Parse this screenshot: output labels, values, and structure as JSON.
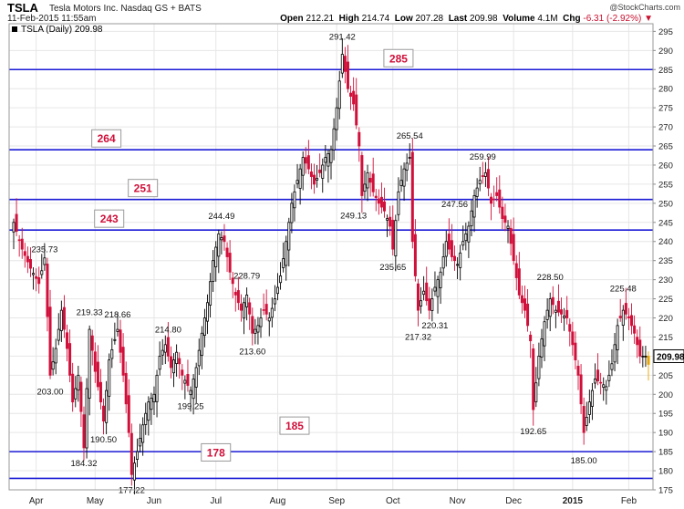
{
  "header": {
    "symbol": "TSLA",
    "company": "Tesla Motors Inc.  Nasdaq GS + BATS",
    "datetime": "11-Feb-2015 11:55am",
    "copyright": "@StockCharts.com",
    "open_label": "Open",
    "open_value": "212.21",
    "high_label": "High",
    "high_value": "214.74",
    "low_label": "Low",
    "low_value": "207.28",
    "last_label": "Last",
    "last_value": "209.98",
    "volume_label": "Volume",
    "volume_value": "4.1M",
    "chg_label": "Chg",
    "chg_value": "-6.31 (-2.92%)",
    "chg_arrow": "▼"
  },
  "chart_data": {
    "type": "candlestick",
    "legend": "TSLA (Daily) 209.98",
    "last_price_label": "209.98",
    "ylim": [
      175,
      297
    ],
    "y_ticks": [
      175,
      180,
      185,
      190,
      195,
      200,
      205,
      210,
      215,
      220,
      225,
      230,
      235,
      240,
      245,
      250,
      255,
      260,
      265,
      270,
      275,
      280,
      285,
      290,
      295
    ],
    "x_labels": [
      {
        "label": "Apr",
        "bold": false,
        "session": 8
      },
      {
        "label": "May",
        "bold": false,
        "session": 29
      },
      {
        "label": "Jun",
        "bold": false,
        "session": 50
      },
      {
        "label": "Jul",
        "bold": false,
        "session": 72
      },
      {
        "label": "Aug",
        "bold": false,
        "session": 94
      },
      {
        "label": "Sep",
        "bold": false,
        "session": 115
      },
      {
        "label": "Oct",
        "bold": false,
        "session": 135
      },
      {
        "label": "Nov",
        "bold": false,
        "session": 158
      },
      {
        "label": "Dec",
        "bold": false,
        "session": 178
      },
      {
        "label": "2015",
        "bold": true,
        "session": 199
      },
      {
        "label": "Feb",
        "bold": false,
        "session": 219
      }
    ],
    "sessions": 227,
    "horizontal_lines": [
      {
        "value": 285,
        "label": "285",
        "label_session": 137
      },
      {
        "value": 264,
        "label": "264",
        "label_session": 33
      },
      {
        "value": 251,
        "label": "251",
        "label_session": 46
      },
      {
        "value": 243,
        "label": "243",
        "label_session": 34
      },
      {
        "value": 185,
        "label": "185",
        "label_session": 100
      },
      {
        "value": 178,
        "label": "178",
        "label_session": 72
      }
    ],
    "annotations": [
      {
        "text": "235.73",
        "session": 11,
        "value": 235.73,
        "pos": "above"
      },
      {
        "text": "203.00",
        "session": 13,
        "value": 203.0,
        "pos": "below"
      },
      {
        "text": "219.33",
        "session": 27,
        "value": 219.33,
        "pos": "above"
      },
      {
        "text": "218.66",
        "session": 37,
        "value": 218.66,
        "pos": "above"
      },
      {
        "text": "190.50",
        "session": 32,
        "value": 190.5,
        "pos": "below"
      },
      {
        "text": "184.32",
        "session": 25,
        "value": 184.32,
        "pos": "below"
      },
      {
        "text": "177.22",
        "session": 42,
        "value": 177.22,
        "pos": "below"
      },
      {
        "text": "214.80",
        "session": 55,
        "value": 214.8,
        "pos": "above"
      },
      {
        "text": "199.25",
        "session": 63,
        "value": 199.25,
        "pos": "below"
      },
      {
        "text": "244.49",
        "session": 74,
        "value": 244.49,
        "pos": "above"
      },
      {
        "text": "228.79",
        "session": 83,
        "value": 228.79,
        "pos": "above"
      },
      {
        "text": "213.60",
        "session": 85,
        "value": 213.6,
        "pos": "below"
      },
      {
        "text": "291.42",
        "session": 117,
        "value": 291.42,
        "pos": "above"
      },
      {
        "text": "249.13",
        "session": 121,
        "value": 249.13,
        "pos": "below"
      },
      {
        "text": "265.54",
        "session": 141,
        "value": 265.54,
        "pos": "above"
      },
      {
        "text": "235.65",
        "session": 135,
        "value": 235.65,
        "pos": "below"
      },
      {
        "text": "217.32",
        "session": 144,
        "value": 217.32,
        "pos": "below"
      },
      {
        "text": "220.31",
        "session": 150,
        "value": 220.31,
        "pos": "below"
      },
      {
        "text": "247.56",
        "session": 157,
        "value": 247.56,
        "pos": "above"
      },
      {
        "text": "259.99",
        "session": 167,
        "value": 259.99,
        "pos": "above"
      },
      {
        "text": "228.50",
        "session": 191,
        "value": 228.5,
        "pos": "above"
      },
      {
        "text": "192.65",
        "session": 185,
        "value": 192.65,
        "pos": "below"
      },
      {
        "text": "185.00",
        "session": 203,
        "value": 185.0,
        "pos": "below"
      },
      {
        "text": "225.48",
        "session": 217,
        "value": 225.48,
        "pos": "above"
      }
    ],
    "close_path": [
      [
        0,
        245
      ],
      [
        3,
        238
      ],
      [
        6,
        233
      ],
      [
        9,
        229
      ],
      [
        11,
        235.7
      ],
      [
        13,
        205
      ],
      [
        15,
        212
      ],
      [
        17,
        222
      ],
      [
        19,
        212
      ],
      [
        21,
        198
      ],
      [
        23,
        205
      ],
      [
        25,
        186
      ],
      [
        27,
        217
      ],
      [
        29,
        206
      ],
      [
        31,
        198
      ],
      [
        32,
        193
      ],
      [
        34,
        209
      ],
      [
        37,
        217
      ],
      [
        39,
        205
      ],
      [
        41,
        190
      ],
      [
        42,
        179
      ],
      [
        44,
        185
      ],
      [
        46,
        192
      ],
      [
        48,
        198
      ],
      [
        50,
        200
      ],
      [
        52,
        210
      ],
      [
        54,
        213
      ],
      [
        56,
        207
      ],
      [
        58,
        211
      ],
      [
        60,
        205
      ],
      [
        63,
        201
      ],
      [
        65,
        207
      ],
      [
        67,
        216
      ],
      [
        69,
        224
      ],
      [
        71,
        235
      ],
      [
        73,
        242
      ],
      [
        75,
        240
      ],
      [
        77,
        232
      ],
      [
        79,
        226
      ],
      [
        81,
        222
      ],
      [
        83,
        226
      ],
      [
        85,
        216
      ],
      [
        87,
        218
      ],
      [
        89,
        222
      ],
      [
        91,
        220
      ],
      [
        93,
        225
      ],
      [
        95,
        231
      ],
      [
        97,
        240
      ],
      [
        99,
        250
      ],
      [
        101,
        256
      ],
      [
        103,
        262
      ],
      [
        105,
        259
      ],
      [
        107,
        255
      ],
      [
        109,
        258
      ],
      [
        111,
        262
      ],
      [
        113,
        264
      ],
      [
        115,
        275
      ],
      [
        117,
        289
      ],
      [
        119,
        280
      ],
      [
        121,
        276
      ],
      [
        123,
        265
      ],
      [
        124,
        252
      ],
      [
        126,
        258
      ],
      [
        128,
        253
      ],
      [
        130,
        250
      ],
      [
        132,
        248
      ],
      [
        134,
        244
      ],
      [
        135,
        238
      ],
      [
        137,
        253
      ],
      [
        139,
        259
      ],
      [
        141,
        262
      ],
      [
        142,
        240
      ],
      [
        144,
        222
      ],
      [
        146,
        227
      ],
      [
        148,
        222
      ],
      [
        150,
        228
      ],
      [
        152,
        232
      ],
      [
        154,
        240
      ],
      [
        156,
        236
      ],
      [
        158,
        234
      ],
      [
        160,
        240
      ],
      [
        162,
        244
      ],
      [
        164,
        252
      ],
      [
        166,
        256
      ],
      [
        168,
        258
      ],
      [
        170,
        250
      ],
      [
        172,
        252
      ],
      [
        174,
        246
      ],
      [
        176,
        244
      ],
      [
        178,
        235
      ],
      [
        180,
        226
      ],
      [
        182,
        222
      ],
      [
        184,
        214
      ],
      [
        185,
        196
      ],
      [
        187,
        210
      ],
      [
        189,
        219
      ],
      [
        191,
        225
      ],
      [
        193,
        222
      ],
      [
        195,
        221
      ],
      [
        197,
        220
      ],
      [
        199,
        213
      ],
      [
        201,
        205
      ],
      [
        203,
        190
      ],
      [
        205,
        198
      ],
      [
        207,
        204
      ],
      [
        209,
        203
      ],
      [
        211,
        202
      ],
      [
        213,
        208
      ],
      [
        215,
        218
      ],
      [
        217,
        222
      ],
      [
        219,
        220
      ],
      [
        221,
        216
      ],
      [
        223,
        210
      ],
      [
        224,
        209.98
      ]
    ]
  }
}
